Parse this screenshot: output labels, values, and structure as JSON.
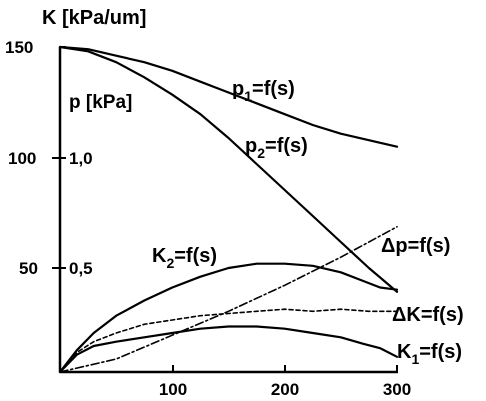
{
  "chart_data": {
    "type": "line",
    "xlim": [
      0,
      300
    ],
    "ylim": [
      0,
      150
    ],
    "x_ticks": [
      "100",
      "200",
      "300"
    ],
    "y_ticks_K": [
      "150",
      "100",
      "50"
    ],
    "y_ticks_p": [
      "1,0",
      "0,5"
    ],
    "ylabel_K": "K [kPa/um]",
    "ylabel_p": "p [kPa]",
    "grid": false,
    "series": [
      {
        "name": "p1=f(s)",
        "label_main": "p",
        "label_sub": "1",
        "label_rest": "=f(s)",
        "style": "solid",
        "x": [
          0,
          25,
          50,
          75,
          100,
          125,
          150,
          175,
          200,
          225,
          250,
          275,
          300
        ],
        "y": [
          150,
          149,
          146,
          143,
          139,
          134,
          129,
          124,
          119,
          114,
          110,
          107,
          104
        ]
      },
      {
        "name": "p2=f(s)",
        "label_main": "p",
        "label_sub": "2",
        "label_rest": "=f(s)",
        "style": "solid",
        "x": [
          0,
          25,
          50,
          75,
          100,
          125,
          150,
          175,
          200,
          225,
          250,
          275,
          300
        ],
        "y": [
          150,
          148,
          143,
          136,
          128,
          119,
          108,
          96,
          84,
          72,
          60,
          48,
          37
        ]
      },
      {
        "name": "Δp=f(s)",
        "label_main": "Δp=f(s)",
        "label_sub": "",
        "label_rest": "",
        "style": "dash-dot",
        "x": [
          0,
          50,
          100,
          150,
          200,
          250,
          300
        ],
        "y": [
          0,
          6,
          17,
          28,
          40,
          53,
          67
        ]
      },
      {
        "name": "K2=f(s)",
        "label_main": "K",
        "label_sub": "2",
        "label_rest": "=f(s)",
        "style": "solid",
        "x": [
          0,
          15,
          30,
          50,
          75,
          100,
          125,
          150,
          175,
          200,
          225,
          250,
          270,
          285,
          300
        ],
        "y": [
          0,
          10,
          18,
          26,
          33,
          39,
          44,
          48,
          50,
          50,
          49,
          46,
          42,
          39,
          38
        ]
      },
      {
        "name": "ΔK=f(s)",
        "label_main": "ΔK=f(s)",
        "label_sub": "",
        "label_rest": "",
        "style": "dashed",
        "x": [
          0,
          15,
          30,
          50,
          75,
          100,
          125,
          150,
          175,
          200,
          225,
          250,
          275,
          300
        ],
        "y": [
          0,
          9,
          14,
          18,
          22,
          24,
          26,
          27,
          28,
          29,
          28,
          29,
          28,
          28
        ]
      },
      {
        "name": "K1=f(s)",
        "label_main": "K",
        "label_sub": "1",
        "label_rest": "=f(s)",
        "style": "solid",
        "x": [
          0,
          15,
          30,
          50,
          75,
          100,
          125,
          150,
          175,
          200,
          225,
          250,
          270,
          285,
          300
        ],
        "y": [
          0,
          8,
          12,
          14,
          16,
          18,
          20,
          21,
          21,
          20,
          18,
          16,
          13,
          11,
          7
        ]
      }
    ]
  }
}
